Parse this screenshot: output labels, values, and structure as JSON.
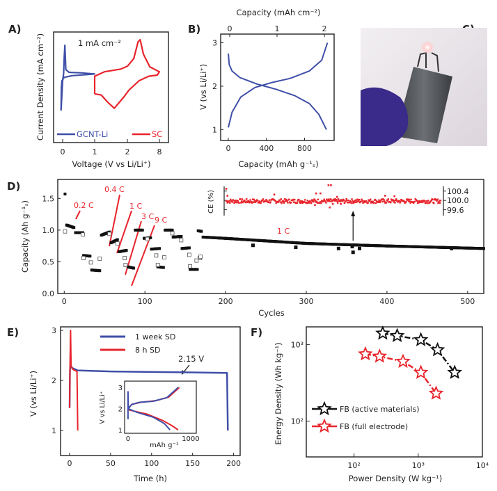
{
  "panel_labels": {
    "a": "A)",
    "b": "B)",
    "c": "C)",
    "d": "D)",
    "e": "E)",
    "f": "F)"
  },
  "colors": {
    "blue": "#3f4fa8",
    "red": "#e8242c",
    "black": "#111111",
    "photo_bg": "#e9e6ea",
    "glove": "#3a2a8a",
    "pouch": "#55585c"
  },
  "chart_data": [
    {
      "id": "A",
      "type": "line",
      "xlabel": "Voltage (V vs Li/Li⁺)",
      "ylabel": "Current Density (mA cm⁻²)",
      "x_ticks": [
        "0",
        "1",
        "2",
        "8"
      ],
      "annotation": "1 mA cm⁻²",
      "legend_position": "bottom",
      "series": [
        {
          "name": "GCNT-Li",
          "color": "#3f4fa8",
          "points": [
            [
              -0.05,
              -0.42
            ],
            [
              -0.04,
              0.0
            ],
            [
              -0.02,
              0.12
            ],
            [
              0.05,
              0.18
            ],
            [
              0.3,
              0.21
            ],
            [
              1.0,
              0.24
            ],
            [
              0.6,
              0.26
            ],
            [
              0.2,
              0.27
            ],
            [
              0.1,
              0.32
            ],
            [
              0.07,
              0.76
            ],
            [
              0.05,
              0.55
            ],
            [
              0.03,
              0.25
            ],
            [
              0.0,
              0.12
            ],
            [
              -0.05,
              -0.42
            ]
          ]
        },
        {
          "name": "SC",
          "color": "#e8242c",
          "points": [
            [
              1.0,
              -0.12
            ],
            [
              1.0,
              0.2
            ],
            [
              1.3,
              0.28
            ],
            [
              1.8,
              0.33
            ],
            [
              2.0,
              0.38
            ],
            [
              3.2,
              0.52
            ],
            [
              4.0,
              0.82
            ],
            [
              4.4,
              0.86
            ],
            [
              5.0,
              0.6
            ],
            [
              6.2,
              0.37
            ],
            [
              8.0,
              0.28
            ],
            [
              7.6,
              0.22
            ],
            [
              6.0,
              0.2
            ],
            [
              4.2,
              0.12
            ],
            [
              2.3,
              -0.05
            ],
            [
              1.9,
              -0.17
            ],
            [
              1.6,
              -0.38
            ],
            [
              1.4,
              -0.27
            ],
            [
              1.2,
              -0.14
            ],
            [
              1.0,
              -0.12
            ]
          ]
        }
      ]
    },
    {
      "id": "B",
      "type": "line",
      "xlabel": "Capacity (mAh g⁻¹ₛ)",
      "x2label": "Capacity (mAh cm⁻²)",
      "ylabel": "V (vs Li/Li⁺)",
      "xlim": [
        -80,
        1110
      ],
      "ylim": [
        0.75,
        3.2
      ],
      "x_ticks": [
        0,
        400,
        800
      ],
      "x2_ticks": [
        0,
        1,
        2
      ],
      "y_ticks": [
        1,
        2,
        3
      ],
      "series": [
        {
          "color": "#3f4fa8",
          "points": [
            [
              0,
              2.75
            ],
            [
              10,
              2.5
            ],
            [
              40,
              2.35
            ],
            [
              120,
              2.2
            ],
            [
              300,
              2.05
            ],
            [
              500,
              1.93
            ],
            [
              700,
              1.78
            ],
            [
              850,
              1.6
            ],
            [
              950,
              1.35
            ],
            [
              1030,
              1.0
            ]
          ]
        },
        {
          "color": "#3f4fa8",
          "points": [
            [
              0,
              1.05
            ],
            [
              40,
              1.4
            ],
            [
              130,
              1.75
            ],
            [
              280,
              1.97
            ],
            [
              450,
              2.08
            ],
            [
              650,
              2.18
            ],
            [
              850,
              2.35
            ],
            [
              980,
              2.6
            ],
            [
              1040,
              3.0
            ]
          ]
        }
      ]
    },
    {
      "id": "D",
      "type": "scatter",
      "xlabel": "Cycles",
      "ylabel": "Capacity (Ah g⁻¹ₛ)",
      "xlim": [
        -8,
        520
      ],
      "ylim": [
        0,
        1.8
      ],
      "x_ticks": [
        0,
        100,
        200,
        300,
        400,
        500
      ],
      "y_ticks": [
        "0.0",
        "0.5",
        "1.0",
        "1.5"
      ],
      "rate_labels": [
        "0.2 C",
        "0.4 C",
        "1 C",
        "3 C",
        "9 C"
      ],
      "long_term_label": "1 C",
      "capacity_segments": [
        [
          1,
          1,
          1.57,
          1.57
        ],
        [
          3,
          12,
          1.08,
          1.04
        ],
        [
          14,
          23,
          0.96,
          0.96
        ],
        [
          24,
          32,
          0.6,
          0.59
        ],
        [
          34,
          44,
          0.37,
          0.36
        ],
        [
          46,
          56,
          0.92,
          0.97
        ],
        [
          58,
          66,
          0.8,
          0.85
        ],
        [
          68,
          77,
          0.66,
          0.68
        ],
        [
          79,
          86,
          0.42,
          0.4
        ],
        [
          88,
          97,
          1.0,
          1.0
        ],
        [
          99,
          107,
          0.87,
          0.88
        ],
        [
          108,
          118,
          0.7,
          0.71
        ],
        [
          116,
          123,
          0.42,
          0.41
        ],
        [
          125,
          134,
          1.0,
          1.0
        ],
        [
          135,
          145,
          0.89,
          0.9
        ],
        [
          146,
          155,
          0.71,
          0.72
        ],
        [
          156,
          165,
          0.38,
          0.38
        ],
        [
          166,
          170,
          0.99,
          0.98
        ],
        [
          172,
          200,
          0.89,
          0.87
        ],
        [
          200,
          300,
          0.87,
          0.79
        ],
        [
          300,
          400,
          0.79,
          0.75
        ],
        [
          400,
          520,
          0.75,
          0.71
        ]
      ],
      "outliers": [
        [
          234,
          0.76
        ],
        [
          287,
          0.73
        ],
        [
          340,
          0.71
        ],
        [
          357,
          0.74
        ],
        [
          358,
          0.65
        ],
        [
          366,
          0.71
        ],
        [
          480,
          0.71
        ]
      ],
      "open_markers": [
        [
          1,
          0.98
        ],
        [
          23,
          0.93
        ],
        [
          24,
          0.56
        ],
        [
          33,
          0.49
        ],
        [
          44,
          0.55
        ],
        [
          56,
          0.94
        ],
        [
          66,
          0.79
        ],
        [
          75,
          0.56
        ],
        [
          76,
          0.45
        ],
        [
          103,
          0.86
        ],
        [
          114,
          0.6
        ],
        [
          116,
          0.45
        ],
        [
          124,
          0.57
        ],
        [
          134,
          0.95
        ],
        [
          145,
          0.84
        ],
        [
          155,
          0.61
        ],
        [
          156,
          0.43
        ],
        [
          164,
          0.52
        ],
        [
          168,
          0.56
        ],
        [
          169,
          0.58
        ]
      ],
      "inset": {
        "ylabel": "CE (%)",
        "y_ticks": [
          "100.4",
          "100.0",
          "99.6"
        ],
        "ylim": [
          99.35,
          100.6
        ],
        "cycle_range": [
          172,
          520
        ],
        "ce_level": 99.97,
        "ce_spread": 0.09,
        "outliers": [
          [
            172,
            100.5
          ],
          [
            174,
            100.2
          ],
          [
            250,
            100.25
          ],
          [
            316,
            99.8
          ],
          [
            318,
            100.3
          ],
          [
            325,
            100.3
          ],
          [
            338,
            100.65
          ],
          [
            340,
            99.7
          ],
          [
            342,
            100.65
          ],
          [
            345,
            99.85
          ],
          [
            352,
            100.15
          ],
          [
            358,
            99.85
          ],
          [
            430,
            100.2
          ],
          [
            445,
            100.18
          ]
        ],
        "arrow_cycle": 358
      }
    },
    {
      "id": "E",
      "type": "line",
      "xlabel": "Time (h)",
      "ylabel": "V (vs Li/Li⁺)",
      "xlim": [
        -11,
        208
      ],
      "ylim": [
        0.5,
        3.07
      ],
      "x_ticks": [
        0,
        50,
        100,
        150,
        200
      ],
      "y_ticks": [
        1,
        2,
        3
      ],
      "annotation": "2.15 V",
      "legend_position": "top-center",
      "series": [
        {
          "name": "1 week SD",
          "color": "#3f4fa8",
          "points": [
            [
              0,
              1.45
            ],
            [
              0.5,
              2.2
            ],
            [
              1,
              2.3
            ],
            [
              3,
              2.25
            ],
            [
              10,
              2.2
            ],
            [
              50,
              2.18
            ],
            [
              150,
              2.16
            ],
            [
              192,
              2.15
            ],
            [
              193,
              1.0
            ]
          ]
        },
        {
          "name": "8 h SD",
          "color": "#e8242c",
          "points": [
            [
              0,
              1.45
            ],
            [
              0.6,
              2.4
            ],
            [
              1.2,
              3.0
            ],
            [
              1.8,
              2.3
            ],
            [
              4,
              2.22
            ],
            [
              9,
              2.18
            ],
            [
              10,
              1.0
            ]
          ]
        }
      ],
      "inset": {
        "xlabel": "mAh g⁻¹",
        "ylabel": "V vs Li/Li⁺",
        "xlim": [
          -55,
          1090
        ],
        "ylim": [
          0.84,
          3.3
        ],
        "x_ticks": [
          0,
          1000
        ],
        "y_ticks": [
          1,
          2,
          3
        ],
        "series": [
          {
            "color": "#e8242c",
            "points": [
              [
                0,
                2.0
              ],
              [
                60,
                2.2
              ],
              [
                200,
                2.3
              ],
              [
                450,
                2.38
              ],
              [
                650,
                2.55
              ],
              [
                820,
                3.0
              ]
            ]
          },
          {
            "color": "#e8242c",
            "points": [
              [
                0,
                1.95
              ],
              [
                300,
                1.75
              ],
              [
                550,
                1.45
              ],
              [
                700,
                1.2
              ],
              [
                800,
                1.0
              ]
            ]
          },
          {
            "color": "#3f4fa8",
            "points": [
              [
                0,
                1.5
              ],
              [
                0,
                2.8
              ],
              [
                5,
                2.0
              ],
              [
                60,
                2.2
              ],
              [
                180,
                2.3
              ],
              [
                400,
                2.35
              ],
              [
                620,
                2.52
              ],
              [
                800,
                3.0
              ]
            ]
          },
          {
            "color": "#3f4fa8",
            "points": [
              [
                0,
                2.0
              ],
              [
                150,
                1.82
              ],
              [
                400,
                1.6
              ],
              [
                580,
                1.3
              ],
              [
                670,
                1.0
              ]
            ]
          }
        ]
      }
    },
    {
      "id": "F",
      "type": "scatter",
      "xlabel": "Power Density (W kg⁻¹)",
      "ylabel": "Energy Density (Wh kg⁻¹)",
      "x_scale": "log",
      "y_scale": "log",
      "xlim": [
        18,
        10000
      ],
      "ylim": [
        34,
        1700
      ],
      "x_ticks": [
        "10²",
        "10³",
        "10⁴"
      ],
      "y_ticks": [
        "10²",
        "10³"
      ],
      "legend_position": "bottom-left",
      "series": [
        {
          "name": "FB (active materials)",
          "color": "#111111",
          "points": [
            [
              280,
              1400
            ],
            [
              470,
              1300
            ],
            [
              1100,
              1150
            ],
            [
              2000,
              850
            ],
            [
              3700,
              430
            ]
          ]
        },
        {
          "name": "FB (full electrode)",
          "color": "#e8242c",
          "points": [
            [
              150,
              750
            ],
            [
              250,
              700
            ],
            [
              580,
              600
            ],
            [
              1100,
              430
            ],
            [
              1900,
              230
            ]
          ]
        }
      ]
    }
  ]
}
